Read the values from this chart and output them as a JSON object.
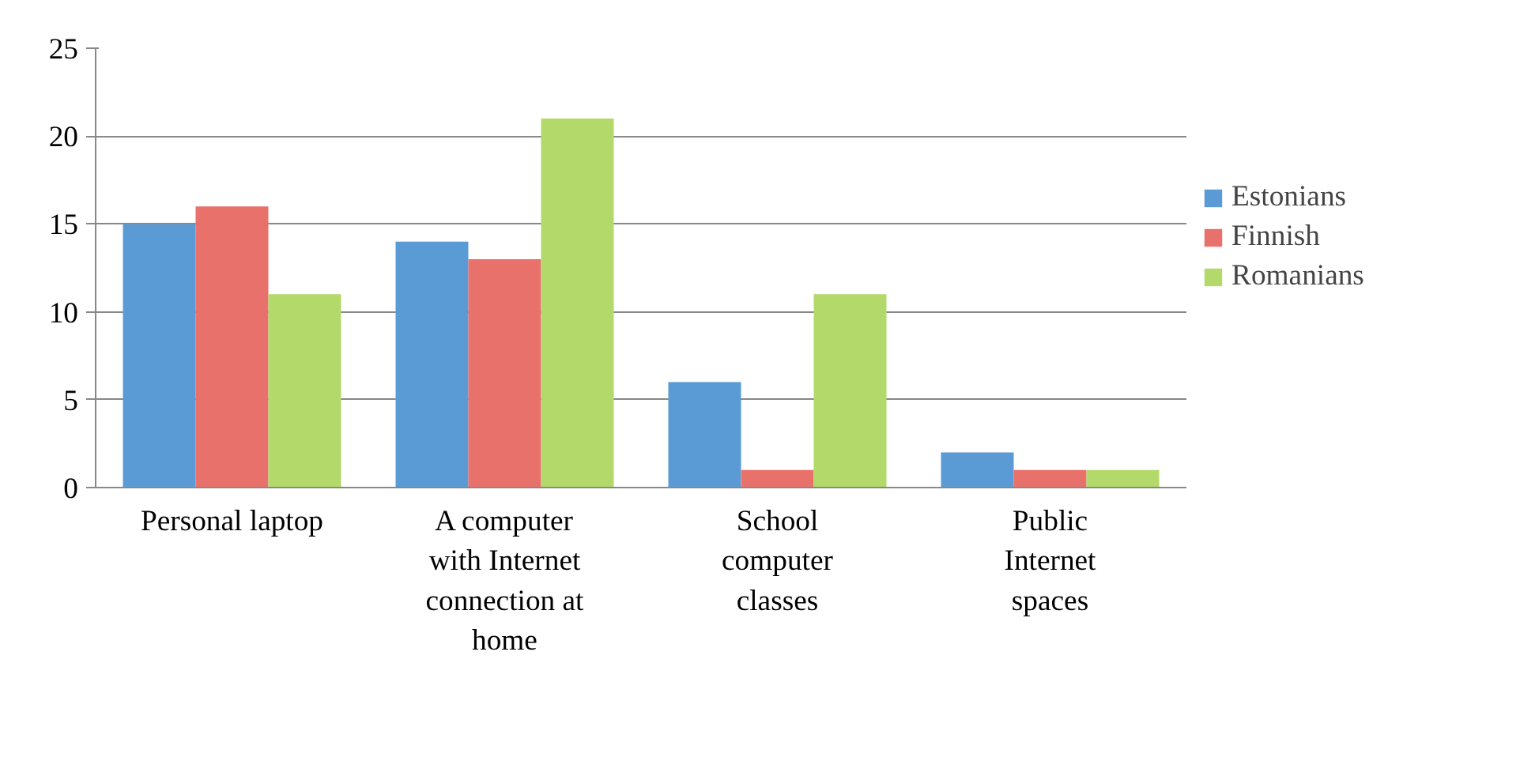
{
  "chart_data": {
    "type": "bar",
    "categories": [
      "Personal laptop",
      "A computer with Internet connection at home",
      "School computer classes",
      "Public Internet spaces"
    ],
    "series": [
      {
        "name": "Estonians",
        "color": "#5b9bd5",
        "values": [
          15,
          14,
          6,
          2
        ]
      },
      {
        "name": "Finnish",
        "color": "#e8716b",
        "values": [
          16,
          13,
          1,
          1
        ]
      },
      {
        "name": "Romanians",
        "color": "#b3d96a",
        "values": [
          11,
          21,
          11,
          1
        ]
      }
    ],
    "ylim": [
      0,
      25
    ],
    "yticks": [
      0,
      5,
      10,
      15,
      20,
      25
    ],
    "grid": "y",
    "legend": "right"
  }
}
